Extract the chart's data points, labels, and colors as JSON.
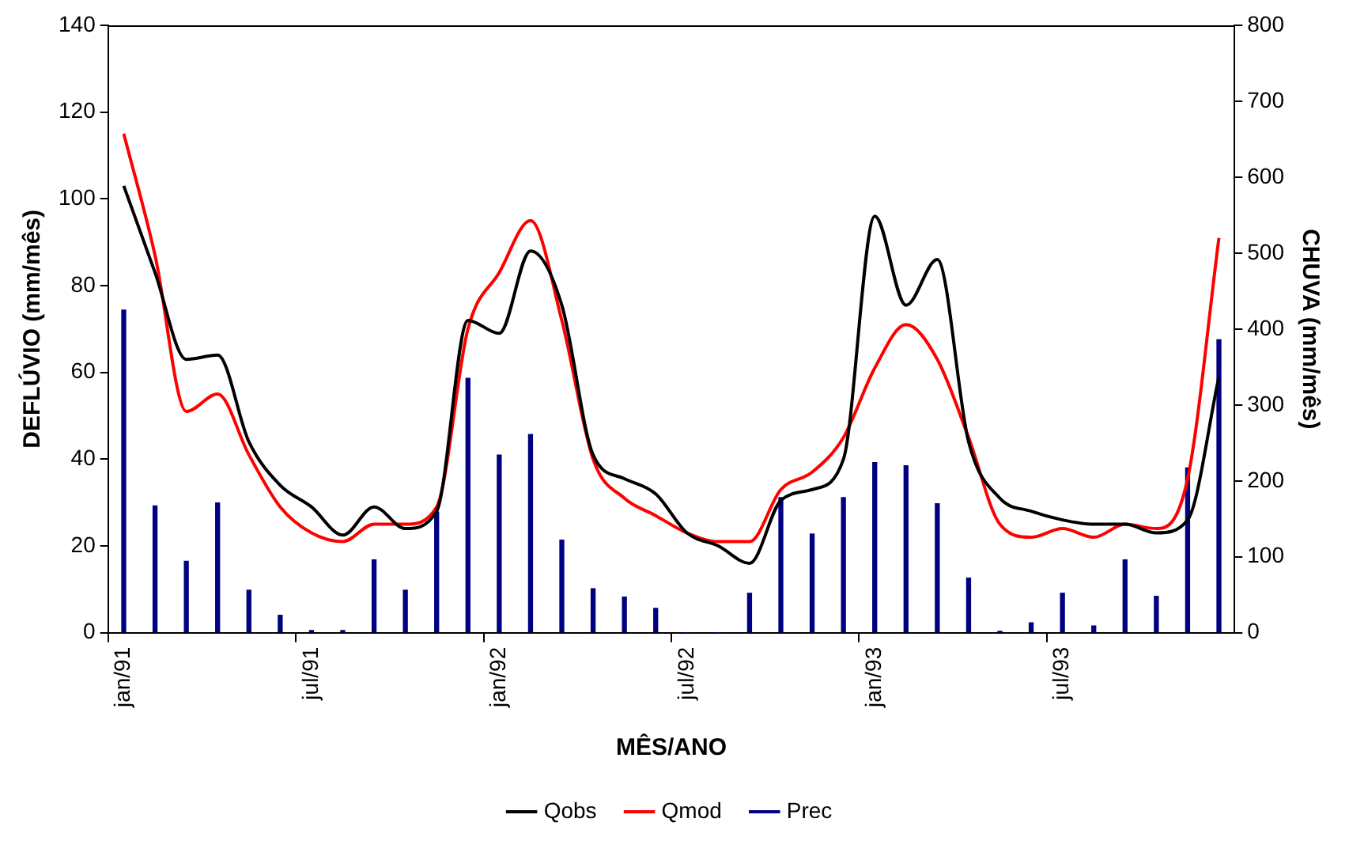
{
  "chart_data": {
    "type": "line",
    "xlabel": "MÊS/ANO",
    "ylabel": "DEFLÚVIO (mm/mês)",
    "y2label": "CHUVA (mm/mês)",
    "categories": [
      "jan/91",
      null,
      null,
      null,
      null,
      null,
      "jul/91",
      null,
      null,
      null,
      null,
      null,
      "jan/92",
      null,
      null,
      null,
      null,
      null,
      "jul/92",
      null,
      null,
      null,
      null,
      null,
      "jan/93",
      null,
      null,
      null,
      null,
      null,
      "jul/93",
      null,
      null,
      null,
      null,
      null
    ],
    "series": [
      {
        "name": "Qobs",
        "color": "#000000",
        "values": [
          103,
          83,
          63,
          64,
          44,
          34,
          29,
          22.5,
          29,
          24,
          28,
          72,
          69,
          88,
          75.5,
          41,
          35.5,
          32,
          23,
          20,
          16,
          30.5,
          33,
          40,
          96,
          75.5,
          86,
          44,
          31,
          28,
          26,
          25,
          25,
          23,
          26,
          59
        ]
      },
      {
        "name": "Qmod",
        "color": "#ff0000",
        "values": [
          115,
          87,
          51,
          55,
          41,
          29,
          23,
          21,
          25,
          25,
          29,
          70,
          83,
          95,
          72,
          40,
          31,
          27,
          23,
          21,
          21,
          33,
          37,
          45,
          61,
          71,
          63,
          45,
          25,
          22,
          24,
          22,
          25,
          24,
          35.5,
          91
        ]
      },
      {
        "name": "Prec",
        "type": "bar",
        "axis": "y2",
        "color": "#000080",
        "values": [
          425,
          167,
          94,
          171,
          56,
          23,
          3,
          3,
          96,
          56,
          159,
          335,
          234,
          261,
          122,
          58,
          47,
          32,
          0,
          0,
          52,
          178,
          130,
          178,
          224,
          220,
          170,
          72,
          2,
          13,
          52,
          9,
          96,
          48,
          217,
          386
        ]
      }
    ],
    "ylim": [
      0,
      140
    ],
    "yticks": [
      0,
      20,
      40,
      60,
      80,
      100,
      120,
      140
    ],
    "y2lim": [
      0,
      800
    ],
    "y2ticks": [
      0,
      100,
      200,
      300,
      400,
      500,
      600,
      700,
      800
    ],
    "grid": false,
    "legend": "bottom",
    "marker": "none",
    "line_style": "solid"
  }
}
